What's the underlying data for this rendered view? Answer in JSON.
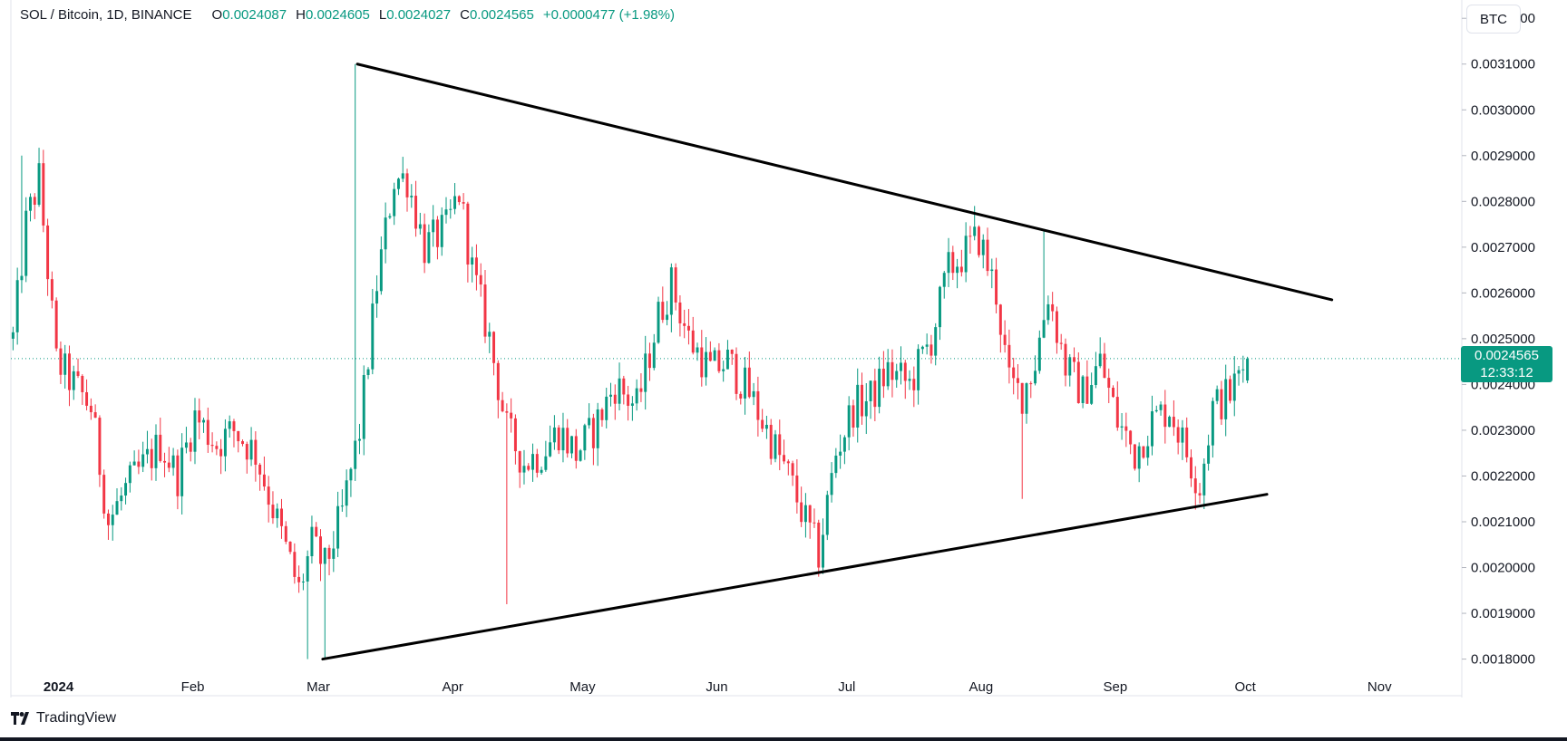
{
  "header": {
    "symbol": "SOL / Bitcoin, 1D, BINANCE",
    "ohlc": [
      {
        "key": "O",
        "value": "0.0024087"
      },
      {
        "key": "H",
        "value": "0.0024605"
      },
      {
        "key": "L",
        "value": "0.0024027"
      },
      {
        "key": "C",
        "value": "0.0024565"
      }
    ],
    "change": "+0.0000477 (+1.98%)"
  },
  "currency_button": "BTC",
  "price_tag": {
    "price": "0.0024565",
    "countdown": "12:33:12"
  },
  "branding": "TradingView",
  "colors": {
    "up": "#089981",
    "down": "#F23645",
    "trendline": "#000000",
    "last_price": "#089981"
  },
  "chart_data": {
    "type": "candlestick",
    "y_axis": {
      "min": 0.00172,
      "max": 0.00324,
      "ticks": [
        "0.0018000",
        "0.0019000",
        "0.0020000",
        "0.0021000",
        "0.0022000",
        "0.0023000",
        "0.0024000",
        "0.0025000",
        "0.0026000",
        "0.0027000",
        "0.0028000",
        "0.0029000",
        "0.0030000",
        "0.0031000",
        "0.0032000"
      ]
    },
    "x_axis": {
      "start_date": "2023-12-21",
      "end_date": "2024-11-20",
      "labels": [
        {
          "date": "2024-01-01",
          "text": "2024",
          "bold": true
        },
        {
          "date": "2024-02-01",
          "text": "Feb"
        },
        {
          "date": "2024-03-01",
          "text": "Mar"
        },
        {
          "date": "2024-04-01",
          "text": "Apr"
        },
        {
          "date": "2024-05-01",
          "text": "May"
        },
        {
          "date": "2024-06-01",
          "text": "Jun"
        },
        {
          "date": "2024-07-01",
          "text": "Jul"
        },
        {
          "date": "2024-08-01",
          "text": "Aug"
        },
        {
          "date": "2024-09-01",
          "text": "Sep"
        },
        {
          "date": "2024-10-01",
          "text": "Oct"
        },
        {
          "date": "2024-11-01",
          "text": "Nov"
        }
      ]
    },
    "last_price": 0.0024565,
    "trendlines": [
      {
        "name": "upper",
        "from": {
          "date": "2024-03-10",
          "price": 0.0031
        },
        "to": {
          "date": "2024-10-21",
          "price": 0.002585
        }
      },
      {
        "name": "lower",
        "from": {
          "date": "2024-03-02",
          "price": 0.0018
        },
        "to": {
          "date": "2024-10-06",
          "price": 0.00216
        }
      }
    ],
    "anchors": [
      [
        "2023-12-21",
        0.0025
      ],
      [
        "2023-12-24",
        0.00275
      ],
      [
        "2023-12-27",
        0.00285
      ],
      [
        "2023-12-31",
        0.00245
      ],
      [
        "2024-01-04",
        0.0024
      ],
      [
        "2024-01-08",
        0.00235
      ],
      [
        "2024-01-12",
        0.0021
      ],
      [
        "2024-01-16",
        0.00217
      ],
      [
        "2024-01-20",
        0.00222
      ],
      [
        "2024-01-24",
        0.00227
      ],
      [
        "2024-01-28",
        0.0022
      ],
      [
        "2024-02-01",
        0.00233
      ],
      [
        "2024-02-06",
        0.00227
      ],
      [
        "2024-02-10",
        0.0023
      ],
      [
        "2024-02-15",
        0.00225
      ],
      [
        "2024-02-20",
        0.0021
      ],
      [
        "2024-02-25",
        0.00195
      ],
      [
        "2024-02-28",
        0.00205
      ],
      [
        "2024-03-02",
        0.002
      ],
      [
        "2024-03-06",
        0.00212
      ],
      [
        "2024-03-10",
        0.0023
      ],
      [
        "2024-03-14",
        0.00262
      ],
      [
        "2024-03-18",
        0.00285
      ],
      [
        "2024-03-21",
        0.00285
      ],
      [
        "2024-03-25",
        0.0027
      ],
      [
        "2024-03-30",
        0.00274
      ],
      [
        "2024-04-02",
        0.00282
      ],
      [
        "2024-04-05",
        0.00265
      ],
      [
        "2024-04-09",
        0.0025
      ],
      [
        "2024-04-13",
        0.0023
      ],
      [
        "2024-04-17",
        0.00223
      ],
      [
        "2024-04-21",
        0.00225
      ],
      [
        "2024-04-25",
        0.0023
      ],
      [
        "2024-04-29",
        0.00225
      ],
      [
        "2024-05-03",
        0.0023
      ],
      [
        "2024-05-08",
        0.0024
      ],
      [
        "2024-05-13",
        0.00235
      ],
      [
        "2024-05-18",
        0.00255
      ],
      [
        "2024-05-21",
        0.00262
      ],
      [
        "2024-05-25",
        0.0025
      ],
      [
        "2024-05-30",
        0.00243
      ],
      [
        "2024-06-03",
        0.00245
      ],
      [
        "2024-06-08",
        0.00238
      ],
      [
        "2024-06-13",
        0.00228
      ],
      [
        "2024-06-17",
        0.0022
      ],
      [
        "2024-06-21",
        0.0021
      ],
      [
        "2024-06-24",
        0.00203
      ],
      [
        "2024-06-28",
        0.00225
      ],
      [
        "2024-07-02",
        0.00235
      ],
      [
        "2024-07-06",
        0.00237
      ],
      [
        "2024-07-10",
        0.00243
      ],
      [
        "2024-07-15",
        0.0024
      ],
      [
        "2024-07-20",
        0.0025
      ],
      [
        "2024-07-24",
        0.00265
      ],
      [
        "2024-07-28",
        0.00269
      ],
      [
        "2024-07-31",
        0.00272
      ],
      [
        "2024-08-04",
        0.0026
      ],
      [
        "2024-08-07",
        0.0024
      ],
      [
        "2024-08-10",
        0.00238
      ],
      [
        "2024-08-13",
        0.00245
      ],
      [
        "2024-08-16",
        0.0026
      ],
      [
        "2024-08-20",
        0.00244
      ],
      [
        "2024-08-24",
        0.00238
      ],
      [
        "2024-08-28",
        0.00245
      ],
      [
        "2024-09-01",
        0.00232
      ],
      [
        "2024-09-05",
        0.00225
      ],
      [
        "2024-09-09",
        0.00232
      ],
      [
        "2024-09-13",
        0.00235
      ],
      [
        "2024-09-17",
        0.00225
      ],
      [
        "2024-09-20",
        0.00218
      ],
      [
        "2024-09-23",
        0.00235
      ],
      [
        "2024-09-27",
        0.00238
      ],
      [
        "2024-10-01",
        0.0024565
      ]
    ],
    "extremes": [
      {
        "date": "2024-03-09",
        "price": 0.0031,
        "type": "high"
      },
      {
        "date": "2024-03-02",
        "price": 0.0018,
        "type": "low"
      },
      {
        "date": "2024-02-27",
        "price": 0.0018,
        "type": "low"
      },
      {
        "date": "2024-04-13",
        "price": 0.00192,
        "type": "low"
      },
      {
        "date": "2024-06-24",
        "price": 0.00198,
        "type": "low"
      },
      {
        "date": "2024-07-30",
        "price": 0.00279,
        "type": "high"
      },
      {
        "date": "2024-08-15",
        "price": 0.00274,
        "type": "high"
      },
      {
        "date": "2024-08-10",
        "price": 0.00215,
        "type": "low"
      },
      {
        "date": "2024-09-20",
        "price": 0.00214,
        "type": "low"
      },
      {
        "date": "2023-12-23",
        "price": 0.0029,
        "type": "high"
      }
    ]
  }
}
